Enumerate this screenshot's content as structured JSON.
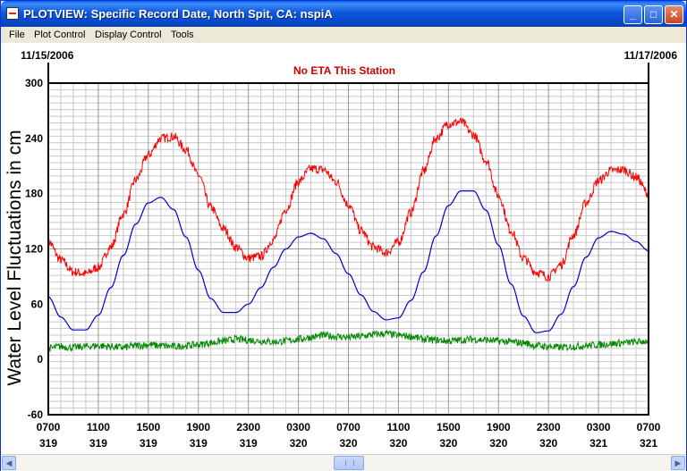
{
  "window": {
    "title": "PLOTVIEW: Specific Record Date, North Spit, CA: nspiA"
  },
  "menu": {
    "items": [
      "File",
      "Plot Control",
      "Display Control",
      "Tools"
    ]
  },
  "titlebar_buttons": {
    "minimize": "_",
    "maximize": "□",
    "close": "✕"
  },
  "chart_data": {
    "type": "line",
    "title": "No ETA This Station",
    "start_date": "11/15/2006",
    "end_date": "11/17/2006",
    "ylabel": "Water Level Fluctuations in cm",
    "ylim": [
      -60,
      300
    ],
    "yticks": [
      -60,
      0,
      60,
      120,
      180,
      240,
      300
    ],
    "xlim": [
      0,
      48
    ],
    "xticks": [
      {
        "x": 0,
        "time": "0700",
        "day": "319"
      },
      {
        "x": 4,
        "time": "1100",
        "day": "319"
      },
      {
        "x": 8,
        "time": "1500",
        "day": "319"
      },
      {
        "x": 12,
        "time": "1900",
        "day": "319"
      },
      {
        "x": 16,
        "time": "2300",
        "day": "319"
      },
      {
        "x": 20,
        "time": "0300",
        "day": "320"
      },
      {
        "x": 24,
        "time": "0700",
        "day": "320"
      },
      {
        "x": 28,
        "time": "1100",
        "day": "320"
      },
      {
        "x": 32,
        "time": "1500",
        "day": "320"
      },
      {
        "x": 36,
        "time": "1900",
        "day": "320"
      },
      {
        "x": 40,
        "time": "2300",
        "day": "320"
      },
      {
        "x": 44,
        "time": "0300",
        "day": "321"
      },
      {
        "x": 48,
        "time": "0700",
        "day": "321"
      }
    ],
    "grid": true,
    "colors": {
      "observed": "#FF0000",
      "predicted": "#0000CC",
      "residual": "#008800",
      "title": "#CC0000"
    },
    "series": [
      {
        "key": "observed",
        "x": [
          0,
          1,
          2,
          3,
          4,
          5,
          6,
          7,
          8,
          9,
          10,
          11,
          12,
          13,
          14,
          15,
          16,
          17,
          18,
          19,
          20,
          21,
          22,
          23,
          24,
          25,
          26,
          27,
          28,
          29,
          30,
          31,
          32,
          33,
          34,
          35,
          36,
          37,
          38,
          39,
          40,
          41,
          42,
          43,
          44,
          45,
          46,
          47,
          48
        ],
        "values": [
          128,
          108,
          95,
          93,
          100,
          122,
          158,
          195,
          222,
          240,
          242,
          228,
          200,
          165,
          142,
          122,
          110,
          112,
          130,
          163,
          193,
          207,
          206,
          193,
          168,
          140,
          122,
          116,
          127,
          160,
          204,
          240,
          256,
          258,
          244,
          216,
          178,
          140,
          110,
          95,
          90,
          103,
          135,
          170,
          194,
          205,
          206,
          198,
          180
        ]
      },
      {
        "key": "predicted",
        "x": [
          0,
          1,
          2,
          3,
          4,
          5,
          6,
          7,
          8,
          9,
          10,
          11,
          12,
          13,
          14,
          15,
          16,
          17,
          18,
          19,
          20,
          21,
          22,
          23,
          24,
          25,
          26,
          27,
          28,
          29,
          30,
          31,
          32,
          33,
          34,
          35,
          36,
          37,
          38,
          39,
          40,
          41,
          42,
          43,
          44,
          45,
          46,
          47,
          48
        ],
        "values": [
          68,
          46,
          32,
          32,
          48,
          78,
          113,
          147,
          170,
          176,
          163,
          133,
          97,
          66,
          51,
          51,
          60,
          78,
          100,
          120,
          133,
          137,
          131,
          115,
          93,
          70,
          52,
          43,
          45,
          64,
          95,
          134,
          167,
          183,
          183,
          162,
          124,
          82,
          47,
          29,
          31,
          49,
          79,
          111,
          132,
          139,
          136,
          128,
          118
        ]
      },
      {
        "key": "residual",
        "x": [
          0,
          1,
          2,
          3,
          4,
          5,
          6,
          7,
          8,
          9,
          10,
          11,
          12,
          13,
          14,
          15,
          16,
          17,
          18,
          19,
          20,
          21,
          22,
          23,
          24,
          25,
          26,
          27,
          28,
          29,
          30,
          31,
          32,
          33,
          34,
          35,
          36,
          37,
          38,
          39,
          40,
          41,
          42,
          43,
          44,
          45,
          46,
          47,
          48
        ],
        "values": [
          12,
          14,
          13,
          14,
          15,
          14,
          13,
          15,
          16,
          15,
          14,
          15,
          16,
          18,
          20,
          22,
          21,
          20,
          19,
          20,
          22,
          24,
          26,
          25,
          24,
          25,
          27,
          28,
          26,
          25,
          22,
          21,
          20,
          21,
          22,
          21,
          20,
          19,
          18,
          15,
          14,
          13,
          14,
          15,
          16,
          17,
          18,
          19,
          20
        ]
      }
    ]
  }
}
